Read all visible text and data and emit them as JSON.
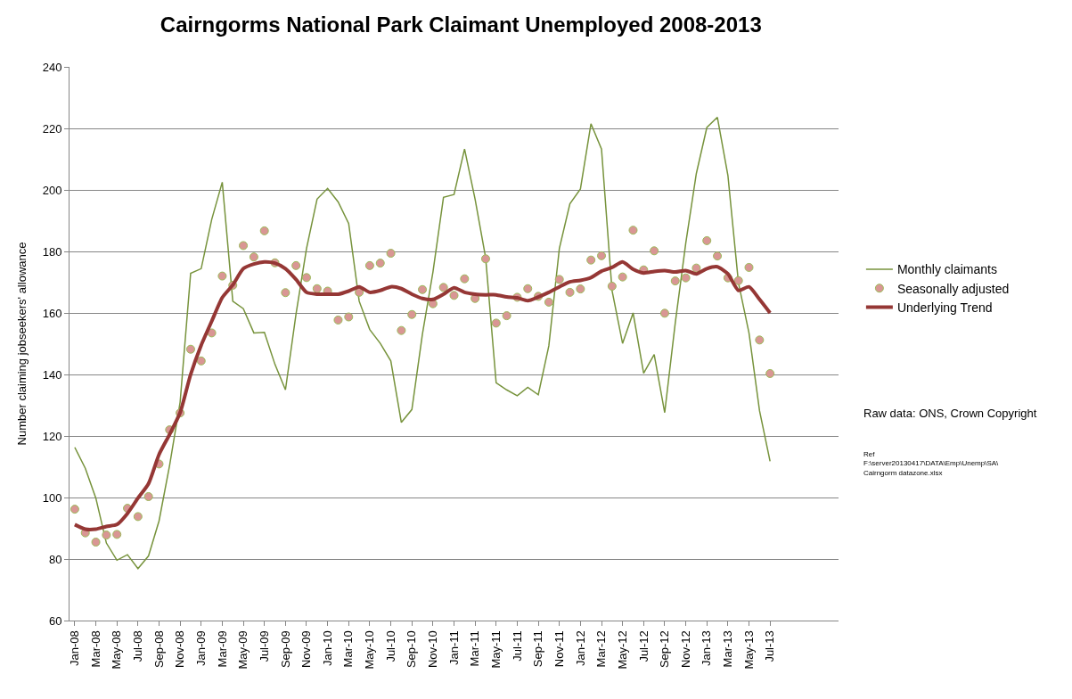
{
  "chart_data": {
    "type": "line",
    "title": "Cairngorms National Park Claimant Unemployed 2008-2013",
    "ylabel": "Number claiming jobseekers' allowance",
    "categories": [
      "Jan-08",
      null,
      "Mar-08",
      null,
      "May-08",
      null,
      "Jul-08",
      null,
      "Sep-08",
      null,
      "Nov-08",
      null,
      "Jan-09",
      null,
      "Mar-09",
      null,
      "May-09",
      null,
      "Jul-09",
      null,
      "Sep-09",
      null,
      "Nov-09",
      null,
      "Jan-10",
      null,
      "Mar-10",
      null,
      "May-10",
      null,
      "Jul-10",
      null,
      "Sep-10",
      null,
      "Nov-10",
      null,
      "Jan-11",
      null,
      "Mar-11",
      null,
      "May-11",
      null,
      "Jul-11",
      null,
      "Sep-11",
      null,
      "Nov-11",
      null,
      "Jan-12",
      null,
      "Mar-12",
      null,
      "May-12",
      null,
      "Jul-12",
      null,
      "Sep-12",
      null,
      "Nov-12",
      null,
      "Jan-13",
      null,
      "Mar-13",
      null,
      "May-13",
      null,
      "Jul-13",
      null,
      null,
      null,
      null,
      null,
      null
    ],
    "series": [
      {
        "name": "Monthly claimants",
        "color": "#77933c",
        "marker": "none",
        "values": [
          116.3,
          109.5,
          99.8,
          85.2,
          79.6,
          81.4,
          76.9,
          81.0,
          92.4,
          110.4,
          131,
          172.9,
          174.4,
          190.4,
          202.5,
          163.8,
          161.4,
          153.5,
          153.7,
          143.3,
          135,
          159.6,
          181,
          197,
          200.5,
          196.1,
          189.1,
          163.8,
          154.6,
          150.1,
          144.4,
          124.4,
          128.6,
          153.1,
          173.3,
          197.6,
          198.5,
          213.3,
          197,
          178,
          137.3,
          135,
          133.1,
          135.8,
          133.4,
          149.3,
          181,
          195.5,
          200.3,
          221.5,
          213.3,
          167.3,
          150.1,
          160,
          140.4,
          146.5,
          127.6,
          156.7,
          182.7,
          205.3,
          220.3,
          223.6,
          204.7,
          169.8,
          153.5,
          128.2,
          111.8,
          null,
          null,
          null,
          null,
          null,
          null
        ]
      },
      {
        "name": "Seasonally adjusted",
        "type": "scatter",
        "color": "#d99694",
        "marker": "circle",
        "values": [
          96.2,
          88.5,
          85.5,
          87.8,
          88,
          96.5,
          93.8,
          100.3,
          110.9,
          122,
          127.5,
          148.2,
          144.4,
          153.5,
          172,
          169,
          181.9,
          178.2,
          186.7,
          176.3,
          166.6,
          175.4,
          171.5,
          167.9,
          167.1,
          157.7,
          158.7,
          166.7,
          175.4,
          176.2,
          179.4,
          154.3,
          159.5,
          167.6,
          163,
          168.3,
          165.7,
          171.1,
          164.7,
          177.6,
          156.7,
          159.1,
          165.1,
          167.9,
          165.4,
          163.5,
          170.9,
          166.7,
          167.8,
          177.2,
          178.6,
          168.7,
          171.7,
          186.9,
          174,
          180.2,
          159.9,
          170.4,
          171.4,
          174.6,
          183.5,
          178.5,
          171.4,
          170.5,
          174.8,
          151.2,
          140.3,
          null,
          null,
          null,
          null,
          null,
          null
        ]
      },
      {
        "name": "Underlying Trend",
        "color": "#953735",
        "marker": "none",
        "values": [
          91.2,
          89.7,
          89.7,
          90.6,
          91.2,
          94.8,
          99.8,
          104.5,
          114,
          120.5,
          127.6,
          140,
          149.5,
          157.3,
          165,
          169.1,
          174.4,
          175.9,
          176.6,
          176.2,
          174.4,
          170.9,
          166.7,
          166.1,
          166.1,
          166.1,
          167.1,
          168.5,
          166.7,
          167.3,
          168.5,
          167.9,
          166.1,
          164.7,
          164.4,
          166.1,
          168.2,
          166.7,
          166.1,
          165.9,
          165.9,
          165.2,
          164.9,
          164,
          165.2,
          166.7,
          168.5,
          170.1,
          170.6,
          171.5,
          173.6,
          174.8,
          176.6,
          174.2,
          173,
          173.5,
          173.8,
          173.3,
          173.8,
          172.7,
          174.4,
          175,
          172.7,
          167.3,
          168.5,
          164.4,
          160,
          null,
          null,
          null,
          null,
          null,
          null
        ]
      }
    ],
    "ylim": [
      60,
      240
    ],
    "yticks": [
      60,
      80,
      100,
      120,
      140,
      160,
      180,
      200,
      220,
      240
    ],
    "grid": "y",
    "legend": "right",
    "annotations": [
      "Raw data: ONS, Crown Copyright",
      "Ref\nF:\\server20130417\\DATA\\Emp\\Unemp\\SA\\\nCairngorm datazone.xlsx"
    ]
  }
}
